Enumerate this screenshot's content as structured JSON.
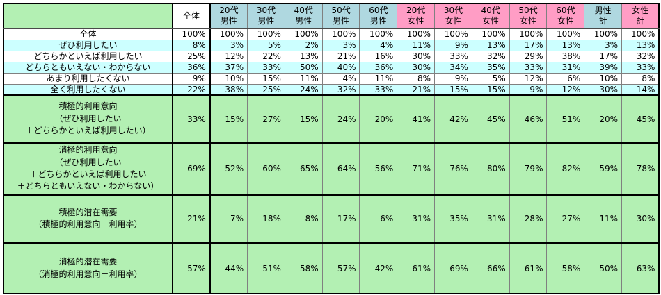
{
  "colors": {
    "summary_green": "#B3F0B3",
    "stripe_cyan": "#CCFFFF",
    "male_blue": "#AFD8E0",
    "female_pink": "#FF9DC5",
    "grid_gray": "#808080",
    "heavy_border": "#000000"
  },
  "table": {
    "corner": "",
    "columns": [
      {
        "lines": [
          "全体"
        ],
        "group": "total"
      },
      {
        "lines": [
          "20代",
          "男性"
        ],
        "group": "male"
      },
      {
        "lines": [
          "30代",
          "男性"
        ],
        "group": "male"
      },
      {
        "lines": [
          "40代",
          "男性"
        ],
        "group": "male"
      },
      {
        "lines": [
          "50代",
          "男性"
        ],
        "group": "male"
      },
      {
        "lines": [
          "60代",
          "男性"
        ],
        "group": "male"
      },
      {
        "lines": [
          "20代",
          "女性"
        ],
        "group": "female"
      },
      {
        "lines": [
          "30代",
          "女性"
        ],
        "group": "female"
      },
      {
        "lines": [
          "40代",
          "女性"
        ],
        "group": "female"
      },
      {
        "lines": [
          "50代",
          "女性"
        ],
        "group": "female"
      },
      {
        "lines": [
          "60代",
          "女性"
        ],
        "group": "female"
      },
      {
        "lines": [
          "男性",
          "計"
        ],
        "group": "male"
      },
      {
        "lines": [
          "女性",
          "計"
        ],
        "group": "female"
      }
    ],
    "rows": [
      {
        "label": "全体",
        "stripe": "white",
        "values": [
          "100%",
          "100%",
          "100%",
          "100%",
          "100%",
          "100%",
          "100%",
          "100%",
          "100%",
          "100%",
          "100%",
          "100%",
          "100%"
        ]
      },
      {
        "label": "ぜひ利用したい",
        "stripe": "cyan",
        "values": [
          "8%",
          "3%",
          "5%",
          "2%",
          "3%",
          "4%",
          "11%",
          "9%",
          "13%",
          "17%",
          "13%",
          "3%",
          "13%"
        ]
      },
      {
        "label": "どちらかといえば利用したい",
        "stripe": "white",
        "values": [
          "25%",
          "12%",
          "22%",
          "13%",
          "21%",
          "16%",
          "30%",
          "33%",
          "32%",
          "29%",
          "38%",
          "17%",
          "32%"
        ]
      },
      {
        "label": "どちらともいえない・わからない",
        "stripe": "cyan",
        "values": [
          "36%",
          "37%",
          "33%",
          "50%",
          "40%",
          "36%",
          "30%",
          "34%",
          "35%",
          "33%",
          "31%",
          "39%",
          "33%"
        ]
      },
      {
        "label": "あまり利用したくない",
        "stripe": "white",
        "values": [
          "9%",
          "10%",
          "15%",
          "11%",
          "4%",
          "11%",
          "8%",
          "9%",
          "5%",
          "12%",
          "6%",
          "10%",
          "8%"
        ]
      },
      {
        "label": "全く利用したくない",
        "stripe": "cyan",
        "values": [
          "22%",
          "38%",
          "25%",
          "24%",
          "32%",
          "33%",
          "21%",
          "15%",
          "15%",
          "9%",
          "12%",
          "30%",
          "14%"
        ]
      }
    ],
    "summary_rows": [
      {
        "label_lines": [
          "積極的利用意向",
          "（ぜひ利用したい",
          "＋どちらかといえば利用したい）"
        ],
        "height": 69,
        "values": [
          "33%",
          "15%",
          "27%",
          "15%",
          "24%",
          "20%",
          "41%",
          "42%",
          "45%",
          "46%",
          "51%",
          "20%",
          "45%"
        ]
      },
      {
        "label_lines": [
          "消極的利用意向",
          "（ぜひ利用したい",
          "＋どちらかといえば利用したい",
          "＋どちらともいえない・わからない）"
        ],
        "height": 74,
        "values": [
          "69%",
          "52%",
          "60%",
          "65%",
          "64%",
          "56%",
          "71%",
          "76%",
          "80%",
          "79%",
          "82%",
          "59%",
          "78%"
        ]
      },
      {
        "label_lines": [
          "積極的潜在需要",
          "（積極的利用意向－利用率）"
        ],
        "height": 70,
        "values": [
          "21%",
          "7%",
          "18%",
          "8%",
          "17%",
          "6%",
          "31%",
          "35%",
          "31%",
          "28%",
          "27%",
          "11%",
          "30%"
        ]
      },
      {
        "label_lines": [
          "消極的潜在需要",
          "（消極的利用意向－利用率）"
        ],
        "height": 73,
        "values": [
          "57%",
          "44%",
          "51%",
          "58%",
          "57%",
          "42%",
          "61%",
          "69%",
          "66%",
          "61%",
          "58%",
          "50%",
          "63%"
        ]
      }
    ]
  },
  "chart_data": {
    "type": "table",
    "title": "",
    "categories": [
      "全体",
      "20代男性",
      "30代男性",
      "40代男性",
      "50代男性",
      "60代男性",
      "20代女性",
      "30代女性",
      "40代女性",
      "50代女性",
      "60代女性",
      "男性計",
      "女性計"
    ],
    "series": [
      {
        "name": "全体",
        "values": [
          100,
          100,
          100,
          100,
          100,
          100,
          100,
          100,
          100,
          100,
          100,
          100,
          100
        ]
      },
      {
        "name": "ぜひ利用したい",
        "values": [
          8,
          3,
          5,
          2,
          3,
          4,
          11,
          9,
          13,
          17,
          13,
          3,
          13
        ]
      },
      {
        "name": "どちらかといえば利用したい",
        "values": [
          25,
          12,
          22,
          13,
          21,
          16,
          30,
          33,
          32,
          29,
          38,
          17,
          32
        ]
      },
      {
        "name": "どちらともいえない・わからない",
        "values": [
          36,
          37,
          33,
          50,
          40,
          36,
          30,
          34,
          35,
          33,
          31,
          39,
          33
        ]
      },
      {
        "name": "あまり利用したくない",
        "values": [
          9,
          10,
          15,
          11,
          4,
          11,
          8,
          9,
          5,
          12,
          6,
          10,
          8
        ]
      },
      {
        "name": "全く利用したくない",
        "values": [
          22,
          38,
          25,
          24,
          32,
          33,
          21,
          15,
          15,
          9,
          12,
          30,
          14
        ]
      },
      {
        "name": "積極的利用意向（ぜひ利用したい＋どちらかといえば利用したい）",
        "values": [
          33,
          15,
          27,
          15,
          24,
          20,
          41,
          42,
          45,
          46,
          51,
          20,
          45
        ]
      },
      {
        "name": "消極的利用意向（ぜひ利用したい＋どちらかといえば利用したい＋どちらともいえない・わからない）",
        "values": [
          69,
          52,
          60,
          65,
          64,
          56,
          71,
          76,
          80,
          79,
          82,
          59,
          78
        ]
      },
      {
        "name": "積極的潜在需要（積極的利用意向－利用率）",
        "values": [
          21,
          7,
          18,
          8,
          17,
          6,
          31,
          35,
          31,
          28,
          27,
          11,
          30
        ]
      },
      {
        "name": "消極的潜在需要（消極的利用意向－利用率）",
        "values": [
          57,
          44,
          51,
          58,
          57,
          42,
          61,
          69,
          66,
          61,
          58,
          50,
          63
        ]
      }
    ],
    "unit": "%"
  }
}
